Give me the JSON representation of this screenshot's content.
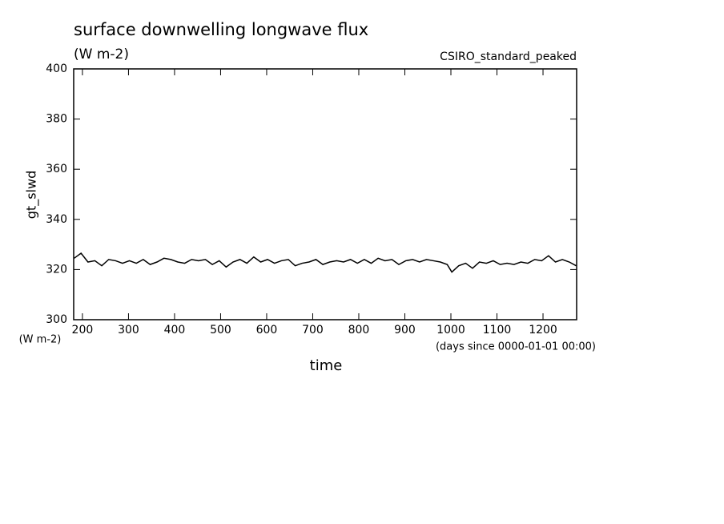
{
  "chart_data": {
    "type": "line",
    "title": "surface downwelling longwave flux",
    "subtitle": "(W m-2)",
    "annotation": "CSIRO_standard_peaked",
    "y_label": "gt_slwd",
    "y_units": "(W m-2)",
    "x_label": "time",
    "x_units": "(days since 0000-01-01 00:00)",
    "color": "#000000",
    "x": [
      182,
      197,
      212,
      227,
      242,
      257,
      272,
      287,
      302,
      317,
      332,
      347,
      362,
      377,
      392,
      407,
      422,
      437,
      452,
      467,
      482,
      497,
      512,
      527,
      542,
      557,
      572,
      587,
      602,
      617,
      632,
      647,
      662,
      677,
      692,
      707,
      722,
      737,
      752,
      767,
      782,
      797,
      812,
      827,
      842,
      857,
      872,
      887,
      902,
      917,
      932,
      947,
      962,
      977,
      992,
      1002,
      1017,
      1032,
      1047,
      1062,
      1077,
      1092,
      1107,
      1122,
      1137,
      1152,
      1167,
      1182,
      1197,
      1212,
      1227,
      1242,
      1257,
      1272
    ],
    "values": [
      324.5,
      326.5,
      323,
      323.5,
      321.5,
      324,
      323.5,
      322.5,
      323.5,
      322.5,
      324,
      322,
      323,
      324.5,
      324,
      323,
      322.5,
      324,
      323.5,
      324,
      322,
      323.5,
      321,
      323,
      324,
      322.5,
      325,
      323,
      324,
      322.5,
      323.5,
      324,
      321.5,
      322.5,
      323,
      324,
      322,
      323,
      323.5,
      323,
      324,
      322.5,
      324,
      322.5,
      324.5,
      323.5,
      324,
      322,
      323.5,
      324,
      323,
      324,
      323.5,
      323,
      322,
      319,
      321.5,
      322.5,
      320.5,
      323,
      322.5,
      323.5,
      322,
      322.5,
      322,
      323,
      322.5,
      324,
      323.5,
      325.5,
      323,
      324,
      323,
      321.5
    ],
    "xlim": [
      181,
      1273
    ],
    "ylim": [
      300,
      400
    ],
    "xticks": [
      200,
      300,
      400,
      500,
      600,
      700,
      800,
      900,
      1000,
      1100,
      1200
    ],
    "yticks": [
      300,
      320,
      340,
      360,
      380,
      400
    ]
  }
}
